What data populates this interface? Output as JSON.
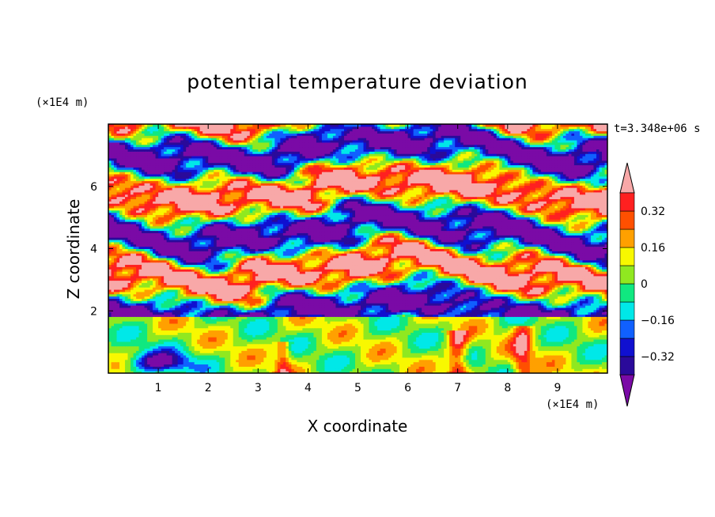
{
  "chart_data": {
    "type": "heatmap",
    "title": "potential temperature deviation",
    "xlabel": "X coordinate",
    "ylabel": "Z coordinate",
    "x_unit": "(×1E4 m)",
    "y_unit": "(×1E4 m)",
    "time_label": "t=3.348e+06 s",
    "xlim": [
      0,
      10
    ],
    "ylim": [
      0,
      8
    ],
    "x_ticks": [
      "1",
      "2",
      "3",
      "4",
      "5",
      "6",
      "7",
      "8",
      "9"
    ],
    "y_ticks": [
      "2",
      "4",
      "6"
    ],
    "colorbar": {
      "levels": [
        -0.4,
        -0.32,
        -0.24,
        -0.16,
        -0.08,
        0,
        0.08,
        0.16,
        0.24,
        0.32,
        0.4
      ],
      "tick_labels": [
        "0.32",
        "0.16",
        "0",
        "−0.16",
        "−0.32"
      ],
      "tick_values": [
        0.32,
        0.16,
        0,
        -0.16,
        -0.32
      ],
      "colors": [
        "#7a0aa6",
        "#2a0a9a",
        "#1010d0",
        "#1060ff",
        "#00e8e8",
        "#10e880",
        "#90e820",
        "#f8f800",
        "#ffa000",
        "#ff5000",
        "#ff2020",
        "#f8a8a8"
      ],
      "extend": "both"
    },
    "description_regions": {
      "upper_layer_z_range": [
        1.8,
        8
      ],
      "upper_layer_values": [
        -0.45,
        0.45
      ],
      "lower_layer_z_range": [
        0,
        1.8
      ],
      "lower_layer_values": [
        -0.35,
        0.3
      ]
    }
  }
}
